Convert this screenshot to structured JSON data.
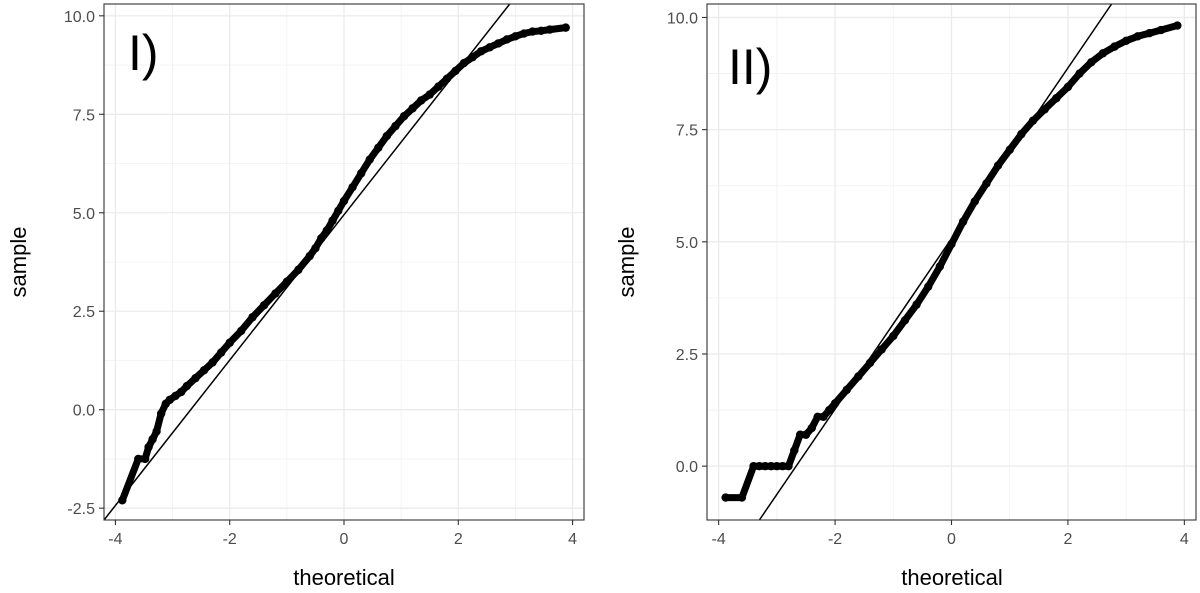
{
  "chart_data": [
    {
      "type": "scatter",
      "panel_label": "I)",
      "xlabel": "theoretical",
      "ylabel": "sample",
      "xlim": [
        -4.2,
        4.2
      ],
      "ylim": [
        -2.8,
        10.3
      ],
      "x_ticks": [
        -4,
        -2,
        0,
        2,
        4
      ],
      "x_tick_labels": [
        "-4",
        "-2",
        "0",
        "2",
        "4"
      ],
      "y_ticks": [
        -2.5,
        0.0,
        2.5,
        5.0,
        7.5,
        10.0
      ],
      "y_tick_labels": [
        "-2.5",
        "0.0",
        "2.5",
        "5.0",
        "7.5",
        "10.0"
      ],
      "grid": true,
      "reference_line": {
        "x": [
          -4.2,
          2.9
        ],
        "y": [
          -2.8,
          10.3
        ]
      },
      "points": {
        "x": [
          -3.88,
          -3.6,
          -3.48,
          -3.42,
          -3.35,
          -3.28,
          -3.2,
          -3.12,
          -3.05,
          -2.95,
          -2.85,
          -2.75,
          -2.6,
          -2.45,
          -2.3,
          -2.15,
          -2.0,
          -1.8,
          -1.6,
          -1.4,
          -1.2,
          -1.0,
          -0.8,
          -0.6,
          -0.5,
          -0.4,
          -0.3,
          -0.2,
          -0.1,
          0.0,
          0.15,
          0.3,
          0.45,
          0.6,
          0.75,
          0.9,
          1.05,
          1.2,
          1.35,
          1.5,
          1.65,
          1.8,
          1.95,
          2.1,
          2.25,
          2.4,
          2.55,
          2.7,
          2.85,
          3.0,
          3.15,
          3.3,
          3.45,
          3.6,
          3.88
        ],
        "y": [
          -2.3,
          -1.25,
          -1.25,
          -0.95,
          -0.75,
          -0.55,
          -0.1,
          0.15,
          0.25,
          0.35,
          0.45,
          0.6,
          0.8,
          1.0,
          1.2,
          1.45,
          1.7,
          2.0,
          2.35,
          2.65,
          2.95,
          3.25,
          3.55,
          3.9,
          4.1,
          4.35,
          4.55,
          4.8,
          5.05,
          5.3,
          5.65,
          6.0,
          6.35,
          6.65,
          6.95,
          7.2,
          7.45,
          7.65,
          7.85,
          8.0,
          8.2,
          8.4,
          8.6,
          8.8,
          8.95,
          9.1,
          9.2,
          9.3,
          9.4,
          9.48,
          9.55,
          9.6,
          9.62,
          9.65,
          9.7
        ]
      }
    },
    {
      "type": "scatter",
      "panel_label": "II)",
      "xlabel": "theoretical",
      "ylabel": "sample",
      "xlim": [
        -4.2,
        4.2
      ],
      "ylim": [
        -1.2,
        10.3
      ],
      "x_ticks": [
        -4,
        -2,
        0,
        2,
        4
      ],
      "x_tick_labels": [
        "-4",
        "-2",
        "0",
        "2",
        "4"
      ],
      "y_ticks": [
        0.0,
        2.5,
        5.0,
        7.5,
        10.0
      ],
      "y_tick_labels": [
        "0.0",
        "2.5",
        "5.0",
        "7.5",
        "10.0"
      ],
      "grid": true,
      "reference_line": {
        "x": [
          -3.3,
          2.75
        ],
        "y": [
          -1.2,
          10.3
        ]
      },
      "points": {
        "x": [
          -3.88,
          -3.6,
          -3.4,
          -3.3,
          -3.2,
          -3.1,
          -3.0,
          -2.9,
          -2.8,
          -2.7,
          -2.6,
          -2.5,
          -2.4,
          -2.3,
          -2.2,
          -2.1,
          -2.0,
          -1.8,
          -1.6,
          -1.4,
          -1.2,
          -1.0,
          -0.8,
          -0.6,
          -0.4,
          -0.2,
          0.0,
          0.2,
          0.4,
          0.6,
          0.8,
          1.0,
          1.2,
          1.4,
          1.6,
          1.8,
          2.0,
          2.2,
          2.4,
          2.6,
          2.8,
          3.0,
          3.2,
          3.4,
          3.6,
          3.88
        ],
        "y": [
          -0.7,
          -0.7,
          0.0,
          0.0,
          0.0,
          0.0,
          0.0,
          0.0,
          0.0,
          0.35,
          0.7,
          0.7,
          0.85,
          1.1,
          1.1,
          1.25,
          1.4,
          1.7,
          2.0,
          2.3,
          2.6,
          2.9,
          3.25,
          3.6,
          4.0,
          4.45,
          4.95,
          5.45,
          5.9,
          6.3,
          6.7,
          7.05,
          7.4,
          7.7,
          7.95,
          8.2,
          8.45,
          8.75,
          9.0,
          9.2,
          9.35,
          9.48,
          9.58,
          9.65,
          9.72,
          9.82
        ]
      }
    }
  ]
}
